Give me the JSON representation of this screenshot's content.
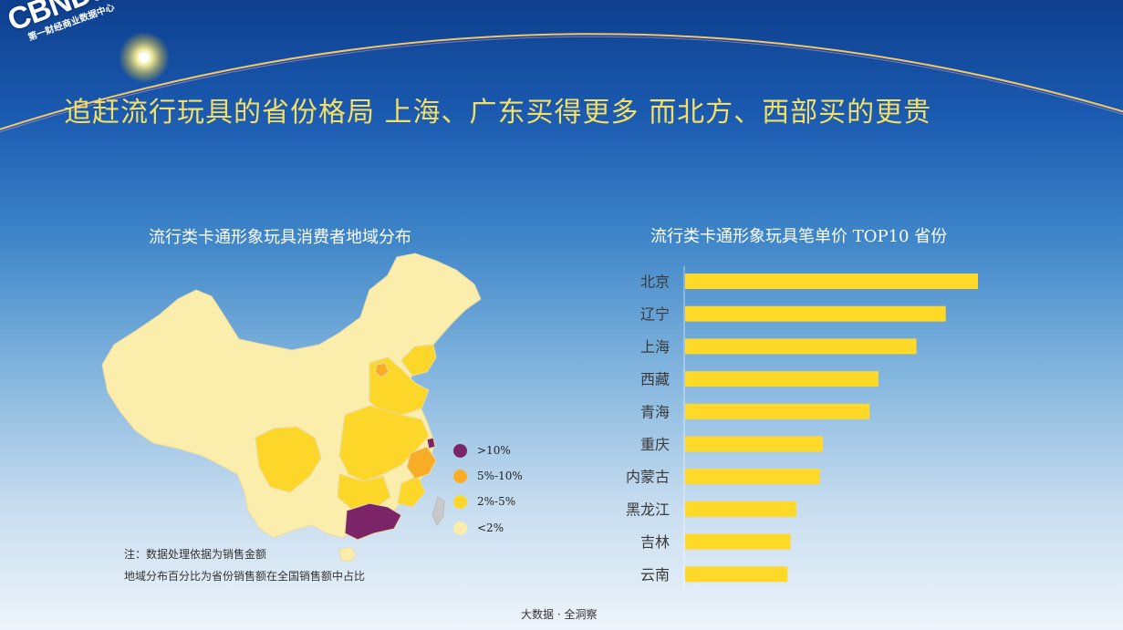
{
  "logo": {
    "main": "CBNData",
    "sub": "第一财经商业数据中心"
  },
  "headline": "追赶流行玩具的省份格局 上海、广东买得更多 而北方、西部买的更贵",
  "colors": {
    "bar": "#ffd928",
    "map_lt2": "#fbedab",
    "map_2_5": "#fdd62a",
    "map_5_10": "#f9ad26",
    "map_gt10": "#7b2468",
    "headline": "#f3df66"
  },
  "chart_data": [
    {
      "type": "map",
      "title": "流行类卡通形象玩具消费者地域分布",
      "legend": [
        {
          "label": ">10%",
          "color": "#7b2468",
          "provinces": [
            "广东",
            "上海"
          ]
        },
        {
          "label": "5%-10%",
          "color": "#f9ad26",
          "provinces": [
            "浙江",
            "北京"
          ]
        },
        {
          "label": "2%-5%",
          "color": "#fdd62a",
          "provinces": [
            "辽宁",
            "河北",
            "山东",
            "江苏",
            "河南",
            "湖北",
            "湖南",
            "四川",
            "福建",
            "安徽"
          ]
        },
        {
          "label": "<2%",
          "color": "#fbedab",
          "provinces": [
            "其他"
          ]
        }
      ],
      "notes": [
        "注：数据处理依据为销售金额",
        "地域分布百分比为省份销售额在全国销售额中占比"
      ]
    },
    {
      "type": "bar",
      "orientation": "horizontal",
      "title": "流行类卡通形象玩具笔单价 TOP10 省份",
      "categories": [
        "北京",
        "辽宁",
        "上海",
        "西藏",
        "青海",
        "重庆",
        "内蒙古",
        "黑龙江",
        "吉林",
        "云南"
      ],
      "values": [
        100,
        89,
        79,
        66,
        63,
        47,
        46,
        38,
        36,
        35
      ],
      "xlim": [
        0,
        100
      ],
      "axis_labels_shown": false
    }
  ],
  "footer": "大数据 · 全洞察"
}
